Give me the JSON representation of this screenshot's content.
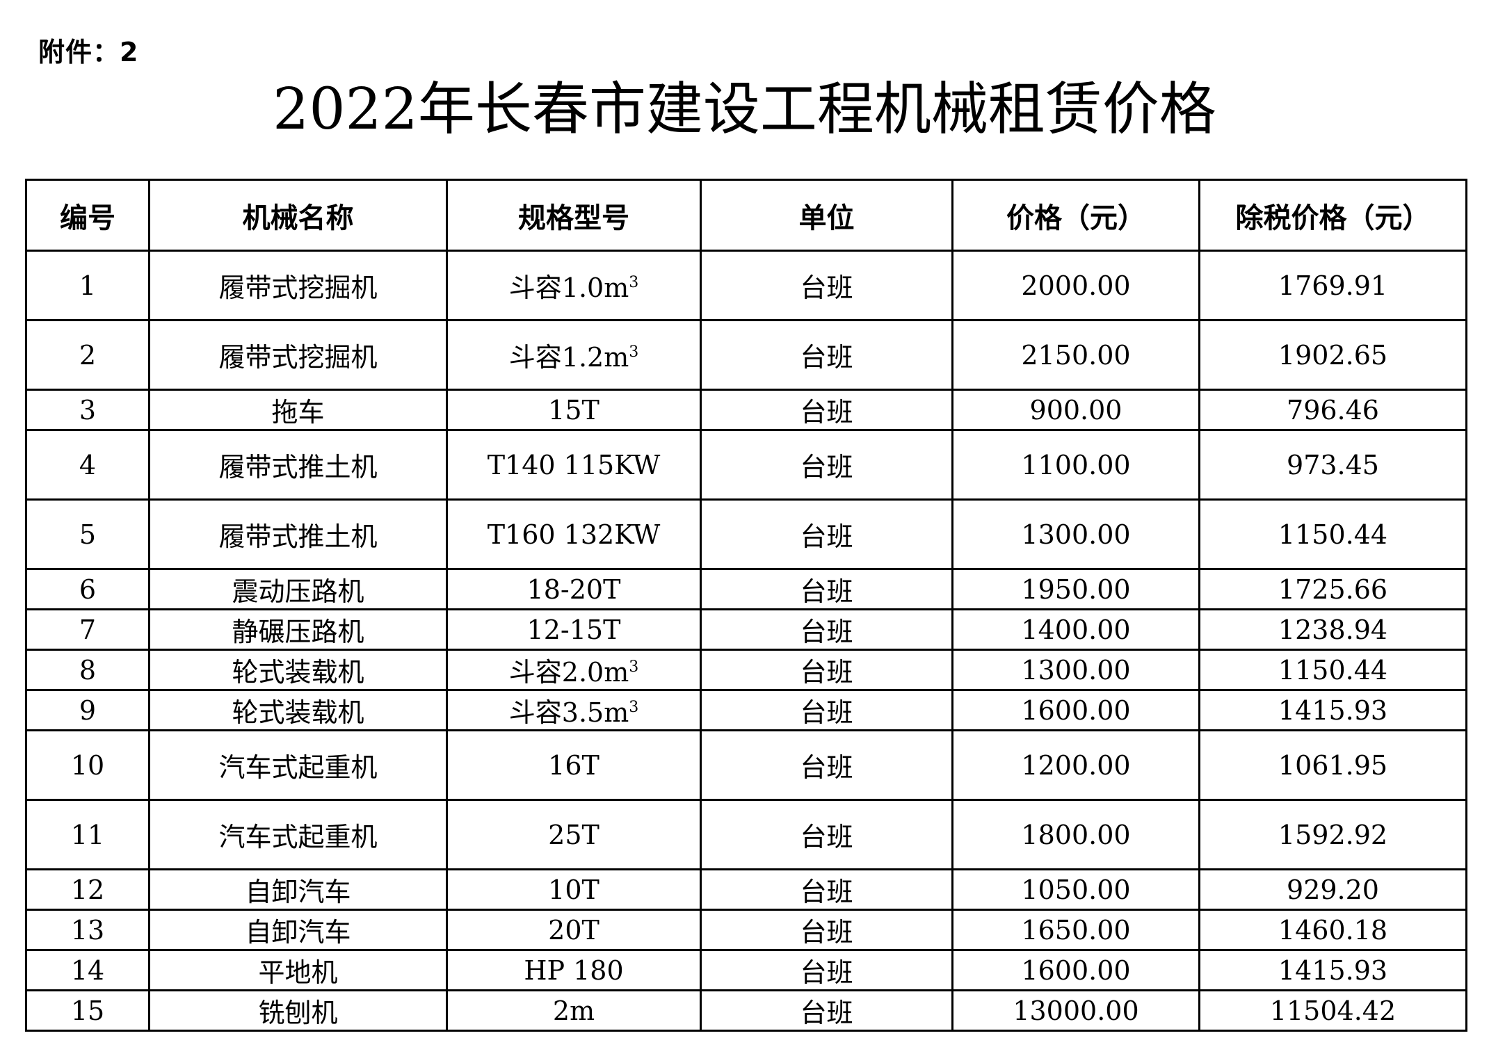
{
  "attachment_label": "附件：2",
  "title": "2022年长春市建设工程机械租赁价格",
  "table": {
    "headers": [
      "编号",
      "机械名称",
      "规格型号",
      "单位",
      "价格（元）",
      "除税价格（元）"
    ],
    "rows": [
      {
        "no": "1",
        "name": "履带式挖掘机",
        "spec": "斗容1.0m",
        "spec_sup": "3",
        "unit": "台班",
        "price": "2000.00",
        "price_ex_tax": "1769.91"
      },
      {
        "no": "2",
        "name": "履带式挖掘机",
        "spec": "斗容1.2m",
        "spec_sup": "3",
        "unit": "台班",
        "price": "2150.00",
        "price_ex_tax": "1902.65"
      },
      {
        "no": "3",
        "name": "拖车",
        "spec": "15T",
        "spec_sup": "",
        "unit": "台班",
        "price": "900.00",
        "price_ex_tax": "796.46"
      },
      {
        "no": "4",
        "name": "履带式推土机",
        "spec": "T140 115KW",
        "spec_sup": "",
        "unit": "台班",
        "price": "1100.00",
        "price_ex_tax": "973.45"
      },
      {
        "no": "5",
        "name": "履带式推土机",
        "spec": "T160 132KW",
        "spec_sup": "",
        "unit": "台班",
        "price": "1300.00",
        "price_ex_tax": "1150.44"
      },
      {
        "no": "6",
        "name": "震动压路机",
        "spec": "18-20T",
        "spec_sup": "",
        "unit": "台班",
        "price": "1950.00",
        "price_ex_tax": "1725.66"
      },
      {
        "no": "7",
        "name": "静碾压路机",
        "spec": "12-15T",
        "spec_sup": "",
        "unit": "台班",
        "price": "1400.00",
        "price_ex_tax": "1238.94"
      },
      {
        "no": "8",
        "name": "轮式装载机",
        "spec": "斗容2.0m",
        "spec_sup": "3",
        "unit": "台班",
        "price": "1300.00",
        "price_ex_tax": "1150.44"
      },
      {
        "no": "9",
        "name": "轮式装载机",
        "spec": "斗容3.5m",
        "spec_sup": "3",
        "unit": "台班",
        "price": "1600.00",
        "price_ex_tax": "1415.93"
      },
      {
        "no": "10",
        "name": "汽车式起重机",
        "spec": "16T",
        "spec_sup": "",
        "unit": "台班",
        "price": "1200.00",
        "price_ex_tax": "1061.95"
      },
      {
        "no": "11",
        "name": "汽车式起重机",
        "spec": "25T",
        "spec_sup": "",
        "unit": "台班",
        "price": "1800.00",
        "price_ex_tax": "1592.92"
      },
      {
        "no": "12",
        "name": "自卸汽车",
        "spec": "10T",
        "spec_sup": "",
        "unit": "台班",
        "price": "1050.00",
        "price_ex_tax": "929.20"
      },
      {
        "no": "13",
        "name": "自卸汽车",
        "spec": "20T",
        "spec_sup": "",
        "unit": "台班",
        "price": "1650.00",
        "price_ex_tax": "1460.18"
      },
      {
        "no": "14",
        "name": "平地机",
        "spec": "HP 180",
        "spec_sup": "",
        "unit": "台班",
        "price": "1600.00",
        "price_ex_tax": "1415.93"
      },
      {
        "no": "15",
        "name": "铣刨机",
        "spec": "2m",
        "spec_sup": "",
        "unit": "台班",
        "price": "13000.00",
        "price_ex_tax": "11504.42"
      }
    ]
  }
}
